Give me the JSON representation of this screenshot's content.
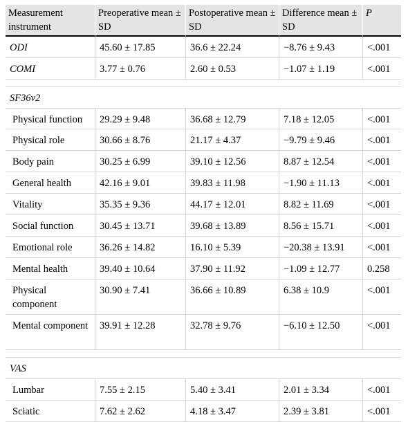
{
  "header": {
    "col1": "Measurement instrument",
    "col2": "Preoperative mean ± SD",
    "col3": "Postoperative mean ± SD",
    "col4": "Difference mean ± SD",
    "col5": "P"
  },
  "top_rows": [
    {
      "name": "ODI",
      "pre": "45.60 ± 17.85",
      "post": "36.6 ± 22.24",
      "diff": "−8.76 ± 9.43",
      "p": "<.001"
    },
    {
      "name": "COMI",
      "pre": "3.77 ± 0.76",
      "post": "2.60 ± 0.53",
      "diff": "−1.07 ± 1.19",
      "p": "<.001"
    }
  ],
  "sf36": {
    "title": "SF36v2",
    "rows": [
      {
        "name": "Physical function",
        "pre": "29.29 ± 9.48",
        "post": "36.68 ± 12.79",
        "diff": "7.18 ± 12.05",
        "p": "<.001"
      },
      {
        "name": "Physical role",
        "pre": "30.66 ± 8.76",
        "post": "21.17 ± 4.37",
        "diff": "−9.79 ± 9.46",
        "p": "<.001"
      },
      {
        "name": "Body pain",
        "pre": "30.25 ± 6.99",
        "post": "39.10 ± 12.56",
        "diff": "8.87 ± 12.54",
        "p": "<.001"
      },
      {
        "name": "General health",
        "pre": "42.16 ± 9.01",
        "post": "39.83 ± 11.98",
        "diff": "−1.90 ± 11.13",
        "p": "<.001"
      },
      {
        "name": "Vitality",
        "pre": "35.35 ± 9.36",
        "post": "44.17 ± 12.01",
        "diff": "8.82 ± 11.69",
        "p": "<.001"
      },
      {
        "name": "Social function",
        "pre": "30.45 ± 13.71",
        "post": "39.68 ± 13.89",
        "diff": "8.56 ± 15.71",
        "p": "<.001"
      },
      {
        "name": "Emotional role",
        "pre": "36.26 ± 14.82",
        "post": "16.10 ± 5.39",
        "diff": "−20.38 ± 13.91",
        "p": "<.001"
      },
      {
        "name": "Mental health",
        "pre": "39.40 ± 10.64",
        "post": "37.90 ± 11.92",
        "diff": "−1.09 ± 12.77",
        "p": "0.258"
      },
      {
        "name": "Physical component",
        "pre": "30.90 ± 7.41",
        "post": "36.66 ± 10.89",
        "diff": "6.38 ± 10.9",
        "p": "<.001"
      },
      {
        "name": "Mental component",
        "pre": "39.91 ± 12.28",
        "post": "32.78 ± 9.76",
        "diff": "−6.10 ± 12.50",
        "p": "<.001"
      }
    ]
  },
  "vas": {
    "title": "VAS",
    "rows": [
      {
        "name": "Lumbar",
        "pre": "7.55 ± 2.15",
        "post": "5.40 ± 3.41",
        "diff": "2.01 ± 3.34",
        "p": "<.001"
      },
      {
        "name": "Sciatic",
        "pre": "7.62 ± 2.62",
        "post": "4.18 ± 3.47",
        "diff": "2.39 ± 3.81",
        "p": "<.001"
      }
    ]
  }
}
